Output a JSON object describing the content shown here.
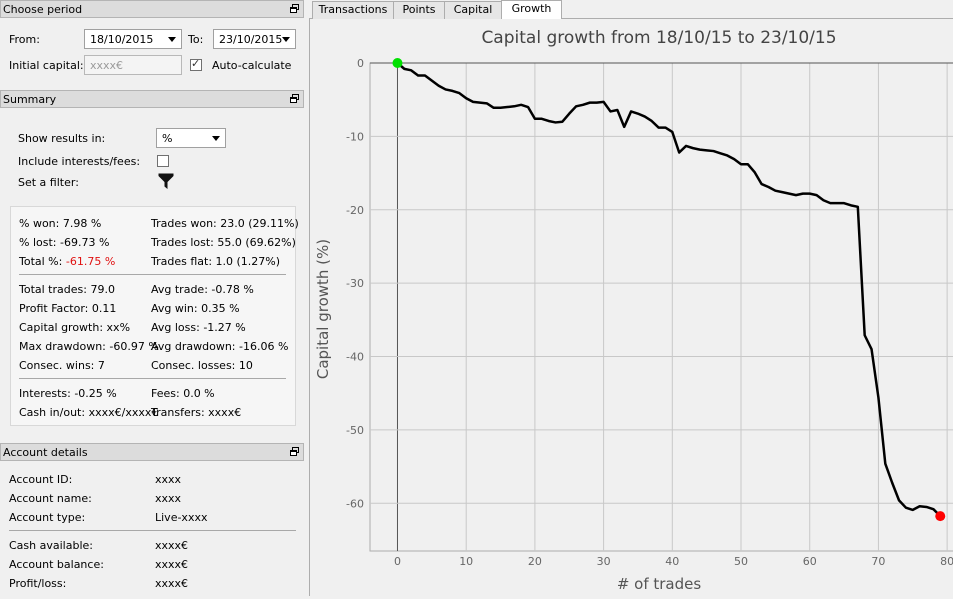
{
  "period": {
    "title": "Choose period",
    "from_label": "From:",
    "from_value": "18/10/2015",
    "to_label": "To:",
    "to_value": "23/10/2015",
    "initial_capital_label": "Initial capital:",
    "initial_capital_placeholder": "xxxx€",
    "auto_calculate_label": "Auto-calculate",
    "auto_calculate_checked": true
  },
  "summary": {
    "title": "Summary",
    "show_results_label": "Show results in:",
    "show_results_value": "%",
    "include_interests_label": "Include interests/fees:",
    "set_filter_label": "Set a filter:",
    "stats": {
      "won_pct": "% won: 7.98 %",
      "trades_won": "Trades won: 23.0 (29.11%)",
      "lost_pct": "% lost: -69.73 %",
      "trades_lost": "Trades lost: 55.0 (69.62%)",
      "total_pct_label": "Total %:",
      "total_pct_value": "-61.75 %",
      "trades_flat": "Trades flat: 1.0 (1.27%)",
      "total_trades": "Total trades: 79.0",
      "avg_trade": "Avg trade: -0.78 %",
      "profit_factor": "Profit Factor: 0.11",
      "avg_win": "Avg win: 0.35 %",
      "capital_growth": "Capital growth: xx%",
      "avg_loss": "Avg loss: -1.27 %",
      "max_drawdown": "Max drawdown: -60.97 %",
      "avg_drawdown": "Avg drawdown: -16.06 %",
      "consec_wins": "Consec. wins: 7",
      "consec_losses": "Consec. losses: 10",
      "interests": "Interests: -0.25 %",
      "fees": "Fees: 0.0 %",
      "cash_in_out": "Cash in/out: xxxx€/xxxx€",
      "transfers": "Transfers: xxxx€"
    }
  },
  "account": {
    "title": "Account details",
    "rows": [
      {
        "label": "Account ID:",
        "value": "xxxx"
      },
      {
        "label": "Account name:",
        "value": "xxxx"
      },
      {
        "label": "Account type:",
        "value": "Live-xxxx"
      },
      {
        "label": "Cash available:",
        "value": "xxxx€"
      },
      {
        "label": "Account balance:",
        "value": "xxxx€"
      },
      {
        "label": "Profit/loss:",
        "value": "xxxx€"
      }
    ]
  },
  "tabs": [
    "Transactions",
    "Points",
    "Capital",
    "Growth"
  ],
  "active_tab": "Growth",
  "colors": {
    "total_negative": "#e01010",
    "start_marker": "#00e000",
    "end_marker": "#ff0000",
    "line": "#000000"
  },
  "chart_data": {
    "type": "line",
    "title": "Capital growth from 18/10/15 to 23/10/15",
    "xlabel": "# of trades",
    "ylabel": "Capital growth (%)",
    "xlim": [
      -4,
      81
    ],
    "ylim": [
      -66.5,
      0
    ],
    "xticks": [
      0,
      10,
      20,
      30,
      40,
      50,
      60,
      70,
      80
    ],
    "yticks": [
      0,
      -10,
      -20,
      -30,
      -40,
      -50,
      -60
    ],
    "grid": true,
    "series": [
      {
        "x": [
          0,
          1,
          2,
          3,
          4,
          5,
          6,
          7,
          8,
          9,
          10,
          11,
          12,
          13,
          14,
          15,
          16,
          17,
          18,
          19,
          20,
          21,
          22,
          23,
          24,
          25,
          26,
          27,
          28,
          29,
          30,
          31,
          32,
          33,
          34,
          35,
          36,
          37,
          38,
          39,
          40,
          41,
          42,
          43,
          44,
          45,
          46,
          47,
          48,
          49,
          50,
          51,
          52,
          53,
          54,
          55,
          56,
          57,
          58,
          59,
          60,
          61,
          62,
          63,
          64,
          65,
          66,
          67,
          68,
          69,
          70,
          71,
          72,
          73,
          74,
          75,
          76,
          77,
          78,
          79
        ],
        "y": [
          0,
          -0.8,
          -1.0,
          -1.7,
          -1.7,
          -2.4,
          -3.1,
          -3.6,
          -3.8,
          -4.1,
          -4.8,
          -5.3,
          -5.4,
          -5.5,
          -6.1,
          -6.1,
          -6.0,
          -5.9,
          -5.7,
          -6.0,
          -7.6,
          -7.6,
          -7.9,
          -8.1,
          -8.0,
          -6.9,
          -5.9,
          -5.7,
          -5.4,
          -5.4,
          -5.3,
          -6.6,
          -6.4,
          -8.7,
          -6.6,
          -6.9,
          -7.3,
          -7.9,
          -8.8,
          -8.8,
          -9.4,
          -12.2,
          -11.3,
          -11.6,
          -11.8,
          -11.9,
          -12.0,
          -12.3,
          -12.6,
          -13.1,
          -13.8,
          -13.8,
          -14.9,
          -16.5,
          -16.9,
          -17.4,
          -17.6,
          -17.8,
          -18.0,
          -17.8,
          -17.8,
          -18.0,
          -18.7,
          -19.1,
          -19.1,
          -19.1,
          -19.4,
          -19.6,
          -37.1,
          -39.0,
          -45.6,
          -54.6,
          -57.2,
          -59.6,
          -60.6,
          -60.9,
          -60.4,
          -60.5,
          -60.8,
          -61.75
        ]
      }
    ]
  }
}
